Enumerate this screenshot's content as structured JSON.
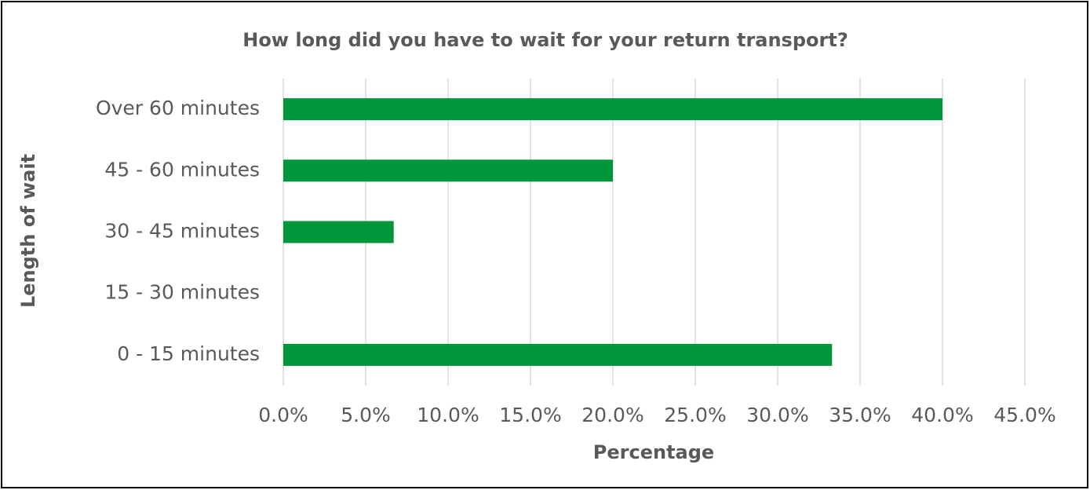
{
  "chart_data": {
    "type": "bar",
    "orientation": "horizontal",
    "title": "How long did you have to wait for your return transport?",
    "x_label": "Percentage",
    "y_label": "Length of wait",
    "categories": [
      "0 - 15 minutes",
      "15 - 30 minutes",
      "30 - 45 minutes",
      "45 - 60 minutes",
      "Over 60 minutes"
    ],
    "values": [
      33.3,
      0,
      6.7,
      20.0,
      40.0
    ],
    "color": "#00963c",
    "xlim": [
      0,
      45
    ],
    "xticks": [
      {
        "value": 0,
        "label": "0.0%"
      },
      {
        "value": 5,
        "label": "5.0%"
      },
      {
        "value": 10,
        "label": "10.0%"
      },
      {
        "value": 15,
        "label": "15.0%"
      },
      {
        "value": 20,
        "label": "20.0%"
      },
      {
        "value": 25,
        "label": "25.0%"
      },
      {
        "value": 30,
        "label": "30.0%"
      },
      {
        "value": 35,
        "label": "35.0%"
      },
      {
        "value": 40,
        "label": "40.0%"
      },
      {
        "value": 45,
        "label": "45.0%"
      }
    ],
    "grid": true
  }
}
